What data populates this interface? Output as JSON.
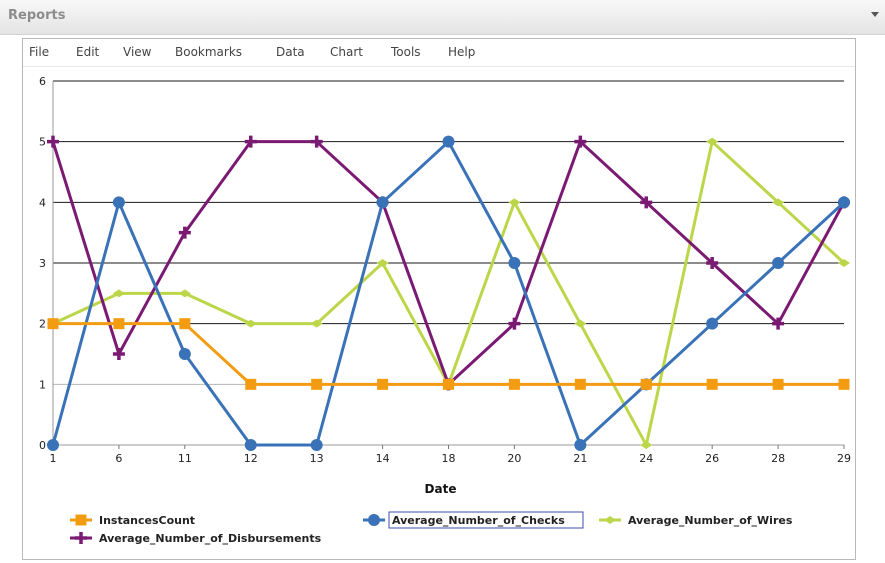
{
  "panel": {
    "title": "Reports"
  },
  "menu": {
    "items": [
      "File",
      "Edit",
      "View",
      "Bookmarks",
      "Data",
      "Chart",
      "Tools",
      "Help"
    ]
  },
  "colors": {
    "InstancesCount": "#f39c12",
    "Average_Number_of_Checks": "#3a72b8",
    "Average_Number_of_Wires": "#bcd64a",
    "Average_Number_of_Disbursements": "#7a1a72"
  },
  "chart_data": {
    "type": "line",
    "xlabel": "Date",
    "ylabel": "",
    "x": [
      "1",
      "6",
      "11",
      "12",
      "13",
      "14",
      "18",
      "20",
      "21",
      "24",
      "26",
      "28",
      "29"
    ],
    "ylim": [
      0,
      6
    ],
    "yticks": [
      "0",
      "1",
      "2",
      "3",
      "4",
      "5",
      "6"
    ],
    "grid": true,
    "legend_position": "bottom",
    "series": [
      {
        "name": "InstancesCount",
        "marker": "square",
        "values": [
          2,
          2,
          2,
          1,
          1,
          1,
          1,
          1,
          1,
          1,
          1,
          1,
          1
        ]
      },
      {
        "name": "Average_Number_of_Checks",
        "marker": "circle",
        "values": [
          0,
          4,
          1.5,
          0,
          0,
          4,
          5,
          3,
          0,
          1,
          2,
          3,
          4
        ]
      },
      {
        "name": "Average_Number_of_Wires",
        "marker": "diamond",
        "values": [
          2,
          2.5,
          2.5,
          2,
          2,
          3,
          1,
          4,
          2,
          0,
          5,
          4,
          3
        ]
      },
      {
        "name": "Average_Number_of_Disbursements",
        "marker": "cross",
        "values": [
          5,
          1.5,
          3.5,
          5,
          5,
          4,
          1,
          2,
          5,
          4,
          3,
          2,
          4
        ]
      }
    ]
  }
}
